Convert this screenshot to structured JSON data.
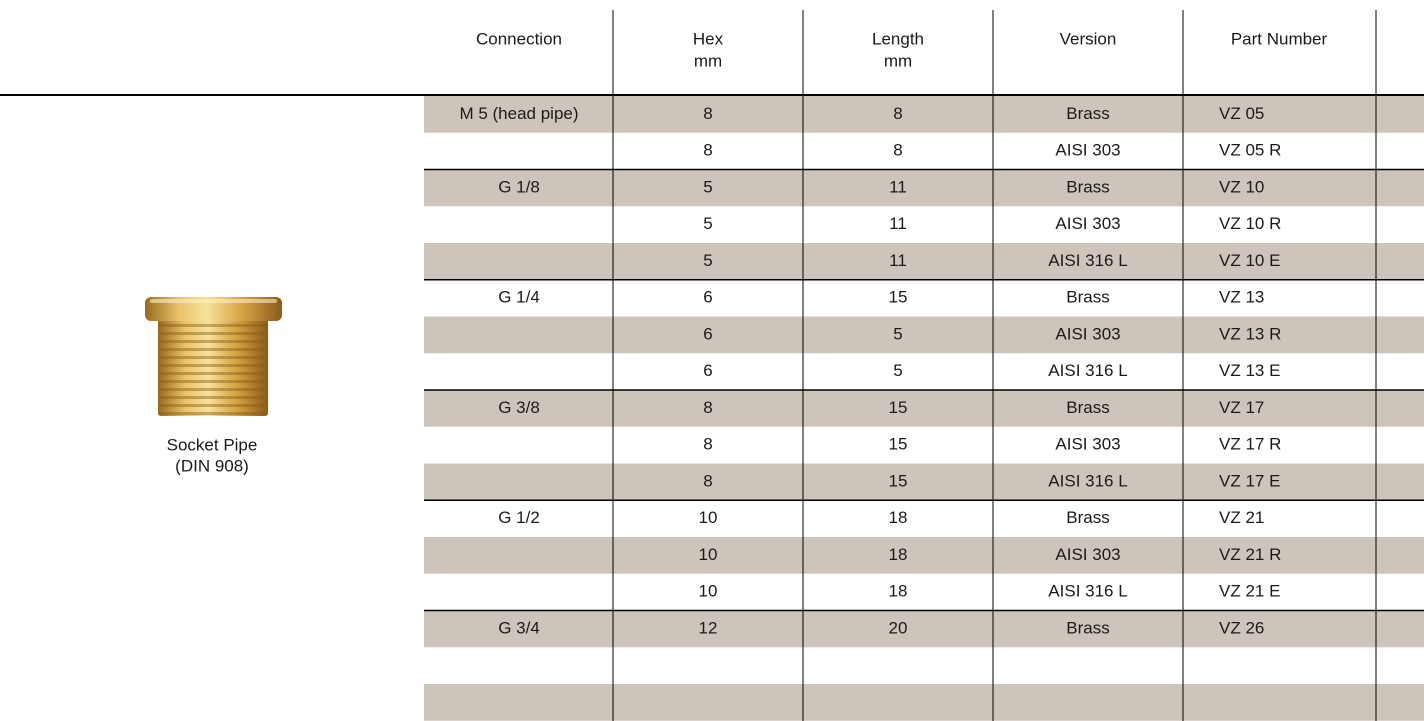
{
  "header": {
    "columns": [
      {
        "label": "Connection"
      },
      {
        "label": "Hex",
        "unit": "mm"
      },
      {
        "label": "Length",
        "unit": "mm"
      },
      {
        "label": "Version"
      },
      {
        "label": "Part Number"
      }
    ]
  },
  "product": {
    "name": "Socket Pipe",
    "standard": "(DIN 908)"
  },
  "table": {
    "groups": [
      {
        "connection": "M 5 (head pipe)",
        "rows": [
          [
            8,
            8,
            "Brass",
            "VZ 05"
          ],
          [
            8,
            8,
            "AISI 303",
            "VZ 05 R"
          ]
        ]
      },
      {
        "connection": "G 1/8",
        "rows": [
          [
            5,
            11,
            "Brass",
            "VZ 10"
          ],
          [
            5,
            11,
            "AISI 303",
            "VZ 10 R"
          ],
          [
            5,
            11,
            "AISI 316 L",
            "VZ 10 E"
          ]
        ]
      },
      {
        "connection": "G 1/4",
        "rows": [
          [
            6,
            15,
            "Brass",
            "VZ 13"
          ],
          [
            6,
            5,
            "AISI 303",
            "VZ 13 R"
          ],
          [
            6,
            5,
            "AISI 316 L",
            "VZ 13 E"
          ]
        ]
      },
      {
        "connection": "G 3/8",
        "rows": [
          [
            8,
            15,
            "Brass",
            "VZ 17"
          ],
          [
            8,
            15,
            "AISI 303",
            "VZ 17 R"
          ],
          [
            8,
            15,
            "AISI 316 L",
            "VZ 17 E"
          ]
        ]
      },
      {
        "connection": "G 1/2",
        "rows": [
          [
            10,
            18,
            "Brass",
            "VZ 21"
          ],
          [
            10,
            18,
            "AISI 303",
            "VZ 21 R"
          ],
          [
            10,
            18,
            "AISI 316 L",
            "VZ 21 E"
          ]
        ]
      },
      {
        "connection": "G 3/4",
        "rows": [
          [
            12,
            20,
            "Brass",
            "VZ 26"
          ]
        ]
      }
    ]
  }
}
